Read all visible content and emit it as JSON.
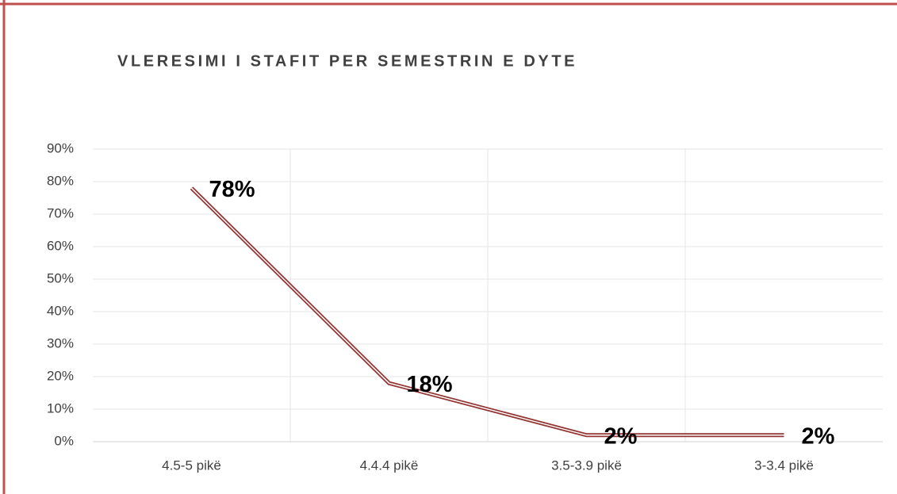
{
  "chart_data": {
    "type": "line",
    "title": "VLERESIMI I STAFIT PER SEMESTRIN E DYTE",
    "categories": [
      "4.5-5 pikë",
      "4.4.4 pikë",
      "3.5-3.9 pikë",
      "3-3.4 pikë"
    ],
    "values": [
      78,
      18,
      2,
      2
    ],
    "value_labels": [
      "78%",
      "18%",
      "2%",
      "2%"
    ],
    "color": "#943634",
    "ylim": [
      0,
      90
    ],
    "yticks": [
      {
        "value": 0,
        "label": "0%"
      },
      {
        "value": 10,
        "label": "10%"
      },
      {
        "value": 20,
        "label": "20%"
      },
      {
        "value": 30,
        "label": "30%"
      },
      {
        "value": 40,
        "label": "40%"
      },
      {
        "value": 50,
        "label": "50%"
      },
      {
        "value": 60,
        "label": "60%"
      },
      {
        "value": 70,
        "label": "70%"
      },
      {
        "value": 80,
        "label": "80%"
      },
      {
        "value": 90,
        "label": "90%"
      }
    ],
    "grid": true
  }
}
